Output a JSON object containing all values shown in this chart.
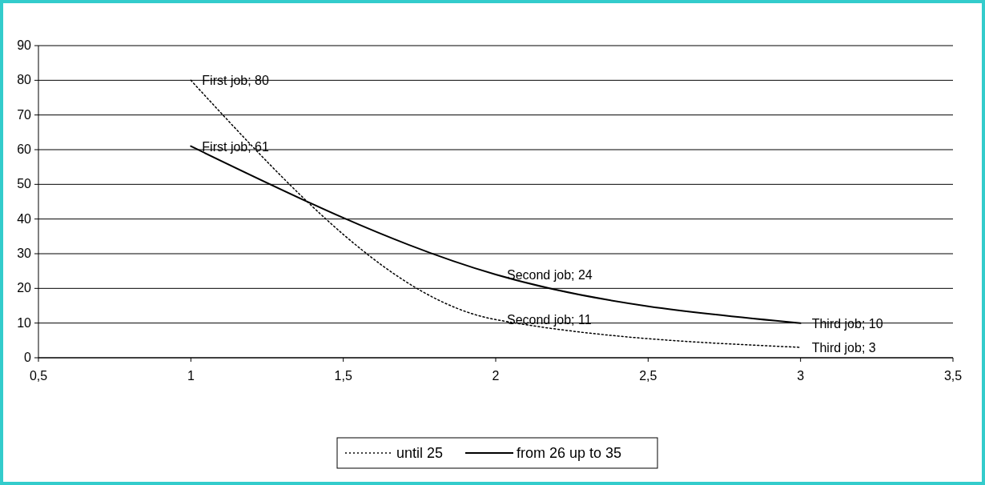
{
  "chart_data": {
    "type": "line",
    "x": [
      1,
      2,
      3
    ],
    "series": [
      {
        "name": "until 25",
        "color": "#000000",
        "line_style": "dotted",
        "values": [
          80,
          11,
          3
        ],
        "value_labels": [
          "First job; 80",
          "Second job; 11",
          "Third job; 3"
        ]
      },
      {
        "name": "from 26 up to 35",
        "color": "#000000",
        "line_style": "solid",
        "values": [
          61,
          24,
          10
        ],
        "value_labels": [
          "First job; 61",
          "Second job; 24",
          "Third job; 10"
        ]
      }
    ],
    "xlim": [
      0.5,
      3.5
    ],
    "xticks": [
      {
        "value": 0.5,
        "label": "0,5"
      },
      1,
      {
        "value": 1.5,
        "label": "1,5"
      },
      2,
      {
        "value": 2.5,
        "label": "2,5"
      },
      3,
      {
        "value": 3.5,
        "label": "3,5"
      }
    ],
    "ylim": [
      0,
      90
    ],
    "yticks": [
      0,
      10,
      20,
      30,
      40,
      50,
      60,
      70,
      80,
      90
    ],
    "grid": "y",
    "legend": "bottom",
    "marker": "none"
  }
}
